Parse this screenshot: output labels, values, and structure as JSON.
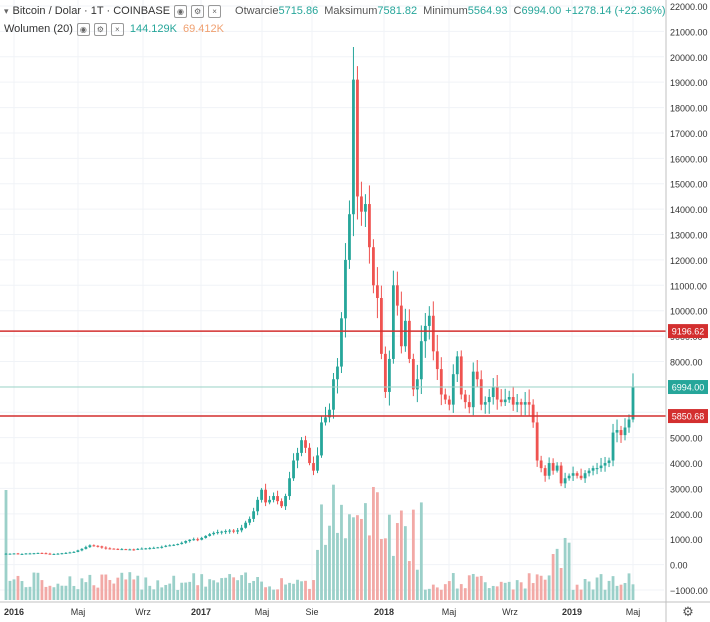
{
  "legend": {
    "symbol": "Bitcoin / Dolar · 1T · COINBASE",
    "open_label": "Otwarcie",
    "open": "5715.86",
    "high_label": "Maksimum",
    "high": "7581.82",
    "low_label": "Minimum",
    "low": "5564.93",
    "close_label": "C",
    "close": "6994.00",
    "change": "+1278.14 (+22.36%)",
    "volume_label": "Wolumen (20)",
    "vol1": "144.129K",
    "vol2": "69.412K",
    "ctl_eye": "◉",
    "ctl_gear": "⚙",
    "ctl_close": "×"
  },
  "colors": {
    "up": "#26a69a",
    "down": "#ef5350",
    "up_vol": "#9bd0c9",
    "down_vol": "#f2a9a6",
    "hline": "#d32f2f",
    "price_line": "#9bd3c7"
  },
  "chart_data": {
    "type": "candlestick",
    "y_ticks": [
      "22000.00",
      "21000.00",
      "20000.00",
      "19000.00",
      "18000.00",
      "17000.00",
      "16000.00",
      "15000.00",
      "14000.00",
      "13000.00",
      "12000.00",
      "11000.00",
      "10000.00",
      "9000.00",
      "8000.00",
      "7000.00",
      "6000.00",
      "5000.00",
      "4000.00",
      "3000.00",
      "2000.00",
      "1000.00",
      "0.00",
      "−1000.00"
    ],
    "x_ticks": [
      "2016",
      "Maj",
      "Wrz",
      "2017",
      "Maj",
      "Sie",
      "2018",
      "Maj",
      "Wrz",
      "2019",
      "Maj"
    ],
    "horizontal_lines": [
      {
        "value": 9196.62,
        "label": "9196.62"
      },
      {
        "value": 5850.68,
        "label": "5850.68"
      }
    ],
    "last_price": {
      "value": 6994.0,
      "label": "6994.00"
    },
    "ylim": [
      -1500,
      22300
    ],
    "close_series": [
      430,
      430,
      440,
      420,
      420,
      440,
      440,
      450,
      460,
      450,
      430,
      420,
      420,
      430,
      450,
      460,
      480,
      500,
      560,
      620,
      690,
      760,
      740,
      720,
      670,
      640,
      630,
      620,
      600,
      610,
      600,
      600,
      590,
      620,
      630,
      640,
      650,
      660,
      680,
      700,
      740,
      760,
      780,
      810,
      860,
      930,
      980,
      1000,
      980,
      1050,
      1130,
      1200,
      1250,
      1280,
      1300,
      1320,
      1340,
      1300,
      1350,
      1450,
      1650,
      1800,
      2100,
      2550,
      2950,
      2450,
      2550,
      2700,
      2500,
      2300,
      2700,
      3400,
      4100,
      4400,
      4900,
      4600,
      4000,
      3700,
      4300,
      5600,
      5800,
      6100,
      7300,
      7800,
      9700,
      12000,
      13800,
      19100,
      14500,
      13900,
      14200,
      12500,
      11000,
      10500,
      8300,
      6800,
      8100,
      11000,
      10200,
      8600,
      9600,
      8100,
      6900,
      7300,
      8800,
      9400,
      9800,
      8400,
      7700,
      6700,
      6500,
      6300,
      7500,
      8200,
      6700,
      6400,
      6200,
      7600,
      7300,
      6300,
      6400,
      6600,
      7000,
      6500,
      6400,
      6500,
      6600,
      6300,
      6400,
      6300,
      6400,
      6300,
      5600,
      4100,
      3800,
      3500,
      4000,
      3700,
      3900,
      3200,
      3400,
      3500,
      3600,
      3500,
      3400,
      3600,
      3700,
      3800,
      3800,
      3900,
      4000,
      4100,
      5200,
      5300,
      5100,
      5400,
      5715.86,
      6994
    ]
  }
}
